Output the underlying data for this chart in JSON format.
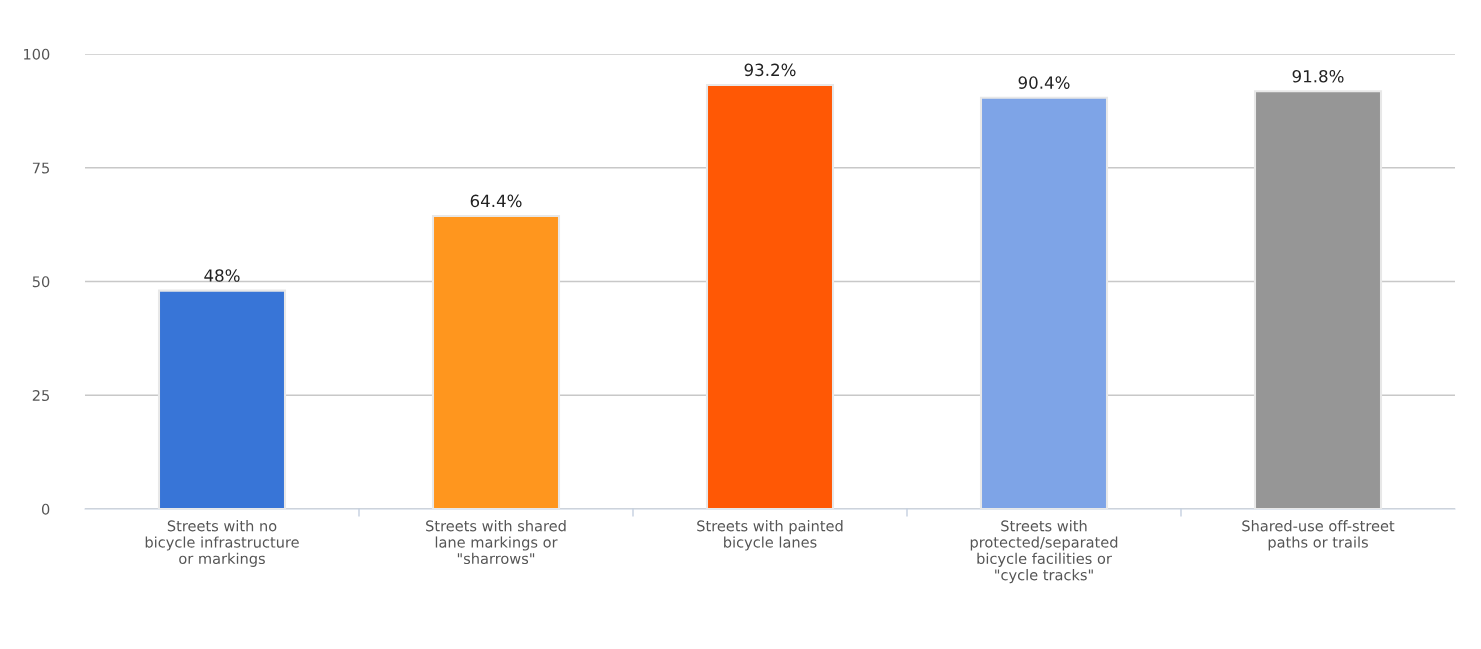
{
  "chart_data": {
    "type": "bar",
    "categories": [
      "Streets with no\nbicycle infrastructure\nor markings",
      "Streets with shared\nlane markings or\n\"sharrows\"",
      "Streets with painted\nbicycle lanes",
      "Streets with\nprotected/separated\nbicycle facilities or\n\"cycle tracks\"",
      "Shared-use off-street\npaths or trails"
    ],
    "values": [
      48,
      64.4,
      93.2,
      90.4,
      91.8
    ],
    "colors": [
      "#3875d7",
      "#ff961e",
      "#ff5805",
      "#7ea4e7",
      "#969696"
    ],
    "value_labels": [
      "48%",
      "64.4%",
      "93.2%",
      "90.4%",
      "91.8%"
    ],
    "ylim": [
      0,
      100
    ],
    "yticks": [
      0,
      25,
      50,
      75,
      100
    ],
    "grid": "y",
    "legend": false
  }
}
